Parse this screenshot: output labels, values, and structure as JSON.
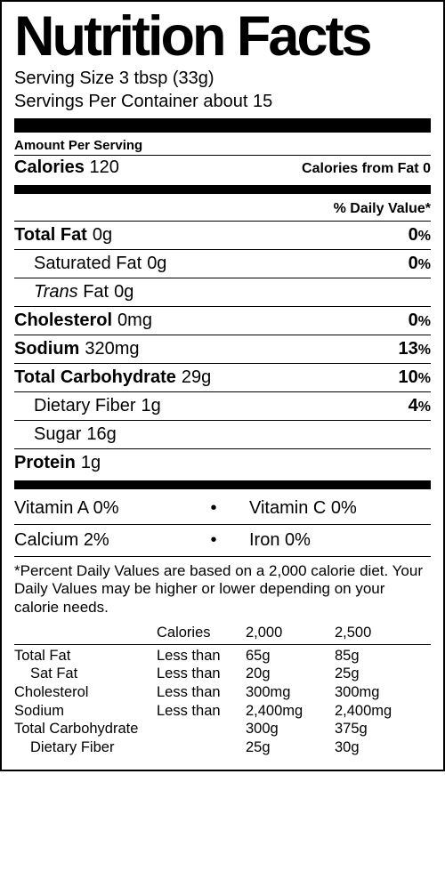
{
  "title": "Nutrition Facts",
  "serving": {
    "size_label": "Serving Size",
    "size_value": "3 tbsp (33g)",
    "per_container_label": "Servings Per Container",
    "per_container_value": "about 15"
  },
  "amount_per_serving_label": "Amount Per Serving",
  "calories": {
    "label": "Calories",
    "value": "120",
    "from_fat_label": "Calories from Fat",
    "from_fat_value": "0"
  },
  "dv_header": "% Daily Value*",
  "nutrients": {
    "total_fat": {
      "name": "Total Fat",
      "amount": "0g",
      "dv": "0"
    },
    "sat_fat": {
      "name": "Saturated Fat",
      "amount": "0g",
      "dv": "0"
    },
    "trans_fat": {
      "name_prefix": "Trans",
      "name_suffix": "Fat",
      "amount": "0g"
    },
    "cholesterol": {
      "name": "Cholesterol",
      "amount": "0mg",
      "dv": "0"
    },
    "sodium": {
      "name": "Sodium",
      "amount": "320mg",
      "dv": "13"
    },
    "total_carb": {
      "name": "Total Carbohydrate",
      "amount": "29g",
      "dv": "10"
    },
    "fiber": {
      "name": "Dietary Fiber",
      "amount": "1g",
      "dv": "4"
    },
    "sugar": {
      "name": "Sugar",
      "amount": "16g"
    },
    "protein": {
      "name": "Protein",
      "amount": "1g"
    }
  },
  "vitamins": {
    "a": {
      "label": "Vitamin A",
      "value": "0%"
    },
    "c": {
      "label": "Vitamin C",
      "value": "0%"
    },
    "calcium": {
      "label": "Calcium",
      "value": "2%"
    },
    "iron": {
      "label": "Iron",
      "value": "0%"
    }
  },
  "footnote": "*Percent Daily Values are based on a 2,000 calorie diet. Your Daily Values may be higher or lower depending on your calorie needs.",
  "ref_table": {
    "head": {
      "c2": "Calories",
      "c3": "2,000",
      "c4": "2,500"
    },
    "rows": [
      {
        "c1": "Total Fat",
        "c2": "Less than",
        "c3": "65g",
        "c4": "85g"
      },
      {
        "c1": "Sat Fat",
        "sub": true,
        "c2": "Less than",
        "c3": "20g",
        "c4": "25g"
      },
      {
        "c1": "Cholesterol",
        "c2": "Less than",
        "c3": "300mg",
        "c4": "300mg"
      },
      {
        "c1": "Sodium",
        "c2": "Less than",
        "c3": "2,400mg",
        "c4": "2,400mg"
      },
      {
        "c1": "Total Carbohydrate",
        "c2": "",
        "c3": "300g",
        "c4": "375g"
      },
      {
        "c1": "Dietary Fiber",
        "sub": true,
        "c2": "",
        "c3": "25g",
        "c4": "30g"
      }
    ]
  }
}
